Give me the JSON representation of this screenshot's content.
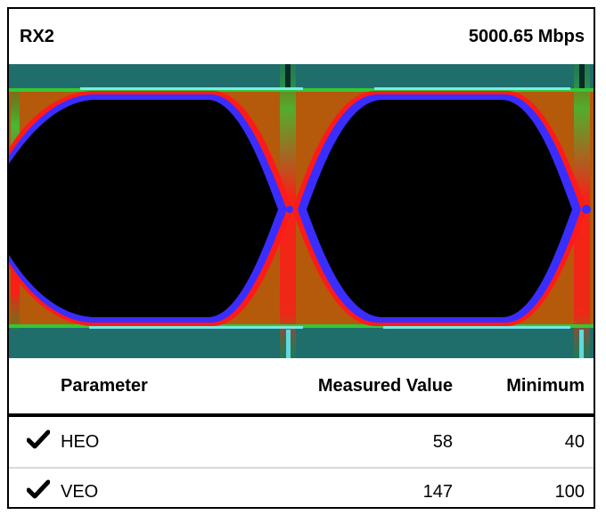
{
  "header": {
    "channel": "RX2",
    "rate": "5000.65 Mbps"
  },
  "eye_diagram": {
    "icon": "eye-diagram-image",
    "colors": {
      "background": "#000000",
      "teal": "#1f6e6c",
      "orange": "#b45a0a",
      "red": "#ff1a1a",
      "blue": "#3a2dff",
      "green": "#36c636",
      "cyan": "#7ff2ff"
    }
  },
  "table": {
    "headers": {
      "parameter": "Parameter",
      "measured": "Measured Value",
      "minimum": "Minimum"
    },
    "rows": [
      {
        "status_icon": "checkmark-icon",
        "parameter": "HEO",
        "measured": "58",
        "minimum": "40"
      },
      {
        "status_icon": "checkmark-icon",
        "parameter": "VEO",
        "measured": "147",
        "minimum": "100"
      }
    ]
  }
}
